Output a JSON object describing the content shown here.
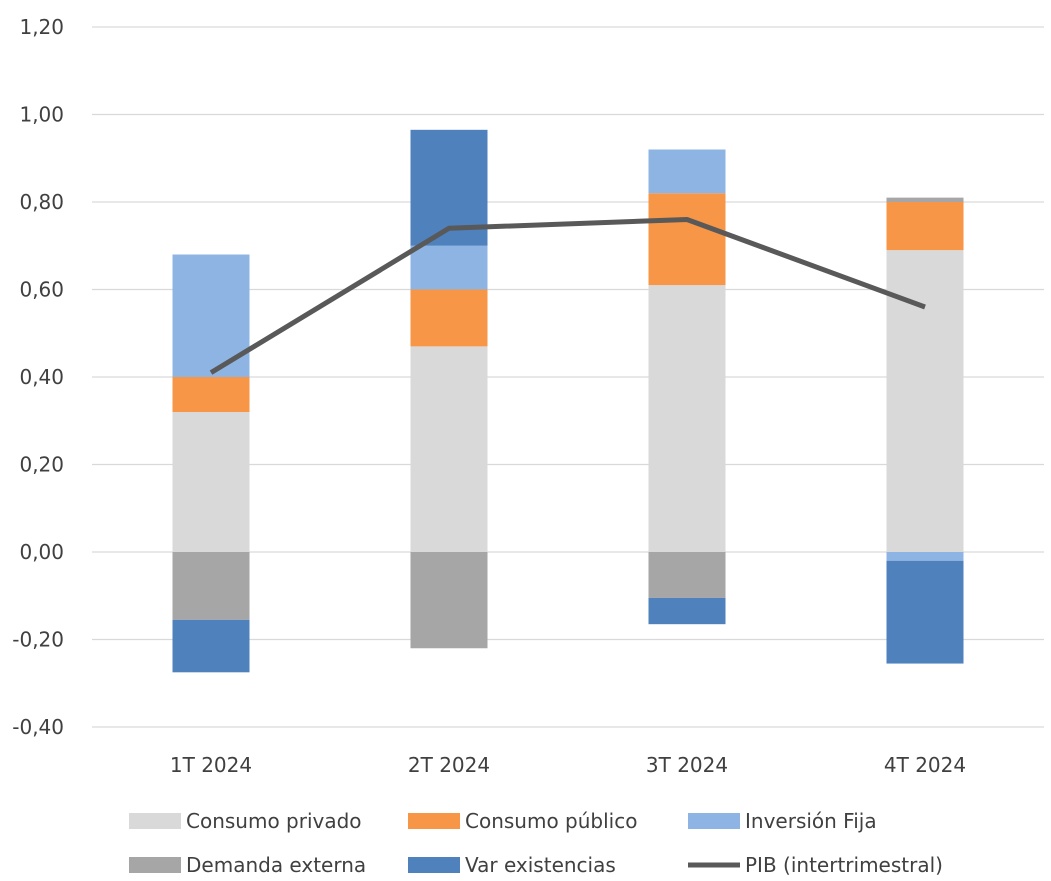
{
  "chart_data": {
    "type": "bar",
    "stacked": true,
    "categories": [
      "1T 2024",
      "2T 2024",
      "3T 2024",
      "4T 2024"
    ],
    "series": [
      {
        "name": "Consumo privado",
        "kind": "bar",
        "color": "#d9d9d9",
        "values": [
          0.32,
          0.47,
          0.61,
          0.69
        ]
      },
      {
        "name": "Consumo público",
        "kind": "bar",
        "color": "#f79646",
        "values": [
          0.08,
          0.13,
          0.21,
          0.11
        ]
      },
      {
        "name": "Inversión Fija",
        "kind": "bar",
        "color": "#8eb4e3",
        "values": [
          0.28,
          0.1,
          0.1,
          -0.02
        ]
      },
      {
        "name": "Demanda externa",
        "kind": "bar",
        "color": "#a6a6a6",
        "values": [
          -0.155,
          -0.22,
          -0.105,
          0.01
        ]
      },
      {
        "name": "Var existencias",
        "kind": "bar",
        "color": "#4f81bd",
        "values": [
          -0.12,
          0.265,
          -0.06,
          -0.235
        ]
      },
      {
        "name": "PIB (intertrimestral)",
        "kind": "line",
        "color": "#595959",
        "values": [
          0.41,
          0.74,
          0.76,
          0.56
        ]
      }
    ],
    "ylim": [
      -0.4,
      1.2
    ],
    "yticks": [
      -0.4,
      -0.2,
      0,
      0.2,
      0.4,
      0.6,
      0.8,
      1.0,
      1.2
    ],
    "ytick_labels": [
      "-0,40",
      "-0,20",
      "0,00",
      "0,20",
      "0,40",
      "0,60",
      "0,80",
      "1,00",
      "1,20"
    ],
    "grid": true,
    "legend_position": "bottom",
    "legend_rows": [
      [
        "Consumo privado",
        "Consumo público",
        "Inversión Fija"
      ],
      [
        "Demanda externa",
        "Var existencias",
        "PIB (intertrimestral)"
      ]
    ]
  }
}
